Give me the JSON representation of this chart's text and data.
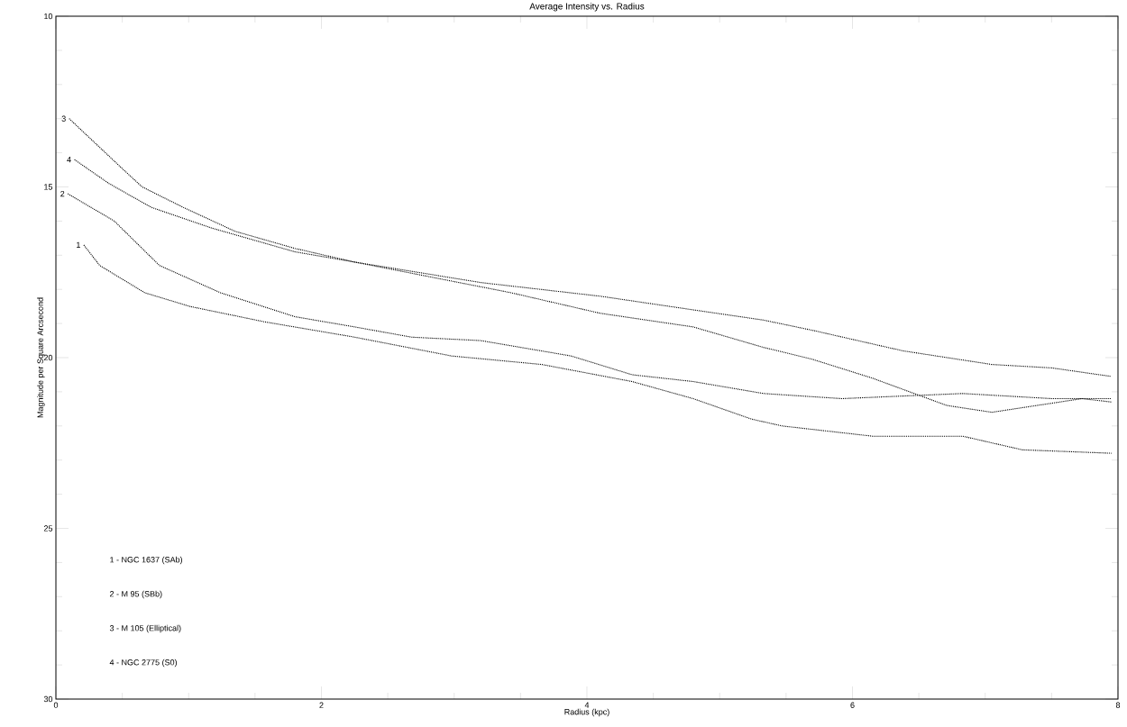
{
  "chart_data": {
    "type": "line",
    "title": "Average Intensity vs. Radius",
    "xlabel": "Radius (kpc)",
    "ylabel": "Magnitude per Square Arcsecond",
    "xlim": [
      0,
      8
    ],
    "ylim": [
      30,
      10
    ],
    "xticks": [
      0,
      2,
      4,
      6,
      8
    ],
    "yticks": [
      10,
      15,
      20,
      25,
      30
    ],
    "grid": false,
    "legend": false,
    "marker": "none",
    "line_style": "dotted",
    "series": [
      {
        "name": "1",
        "color": "#000000",
        "x": [
          0.21,
          0.33,
          0.67,
          1.01,
          1.57,
          2.25,
          2.98,
          3.66,
          4.34,
          4.8,
          5.24,
          5.47,
          6.15,
          6.83,
          7.28,
          7.95
        ],
        "values": [
          16.7,
          17.3,
          18.1,
          18.5,
          18.95,
          19.4,
          19.95,
          20.2,
          20.7,
          21.2,
          21.8,
          22.0,
          22.3,
          22.3,
          22.7,
          22.8
        ]
      },
      {
        "name": "2",
        "color": "#000000",
        "x": [
          0.09,
          0.44,
          0.78,
          1.24,
          1.8,
          2.25,
          2.68,
          3.2,
          3.88,
          4.34,
          4.8,
          5.33,
          5.92,
          6.83,
          7.5,
          7.95
        ],
        "values": [
          15.2,
          16.0,
          17.3,
          18.1,
          18.8,
          19.1,
          19.4,
          19.5,
          19.95,
          20.5,
          20.7,
          21.05,
          21.2,
          21.05,
          21.2,
          21.2
        ]
      },
      {
        "name": "3",
        "color": "#000000",
        "x": [
          0.1,
          0.51,
          0.65,
          0.96,
          1.35,
          1.8,
          2.25,
          3.2,
          4.1,
          4.8,
          5.33,
          5.7,
          6.38,
          7.05,
          7.5,
          7.95
        ],
        "values": [
          13.0,
          14.5,
          15.0,
          15.6,
          16.3,
          16.8,
          17.2,
          17.8,
          18.2,
          18.6,
          18.9,
          19.2,
          19.8,
          20.2,
          20.3,
          20.55
        ]
      },
      {
        "name": "4",
        "color": "#000000",
        "x": [
          0.14,
          0.4,
          0.72,
          1.17,
          1.8,
          2.25,
          3.43,
          4.1,
          4.8,
          5.33,
          5.7,
          6.15,
          6.71,
          7.05,
          7.73,
          7.95
        ],
        "values": [
          14.2,
          14.9,
          15.6,
          16.2,
          16.9,
          17.2,
          18.1,
          18.7,
          19.1,
          19.7,
          20.05,
          20.6,
          21.4,
          21.6,
          21.2,
          21.3
        ]
      }
    ],
    "annotations": [
      "1 - NGC 1637 (SAb)",
      "2 - M 95 (SBb)",
      "3 - M 105 (Elliptical)",
      "4 - NGC 2775 (S0)"
    ]
  }
}
